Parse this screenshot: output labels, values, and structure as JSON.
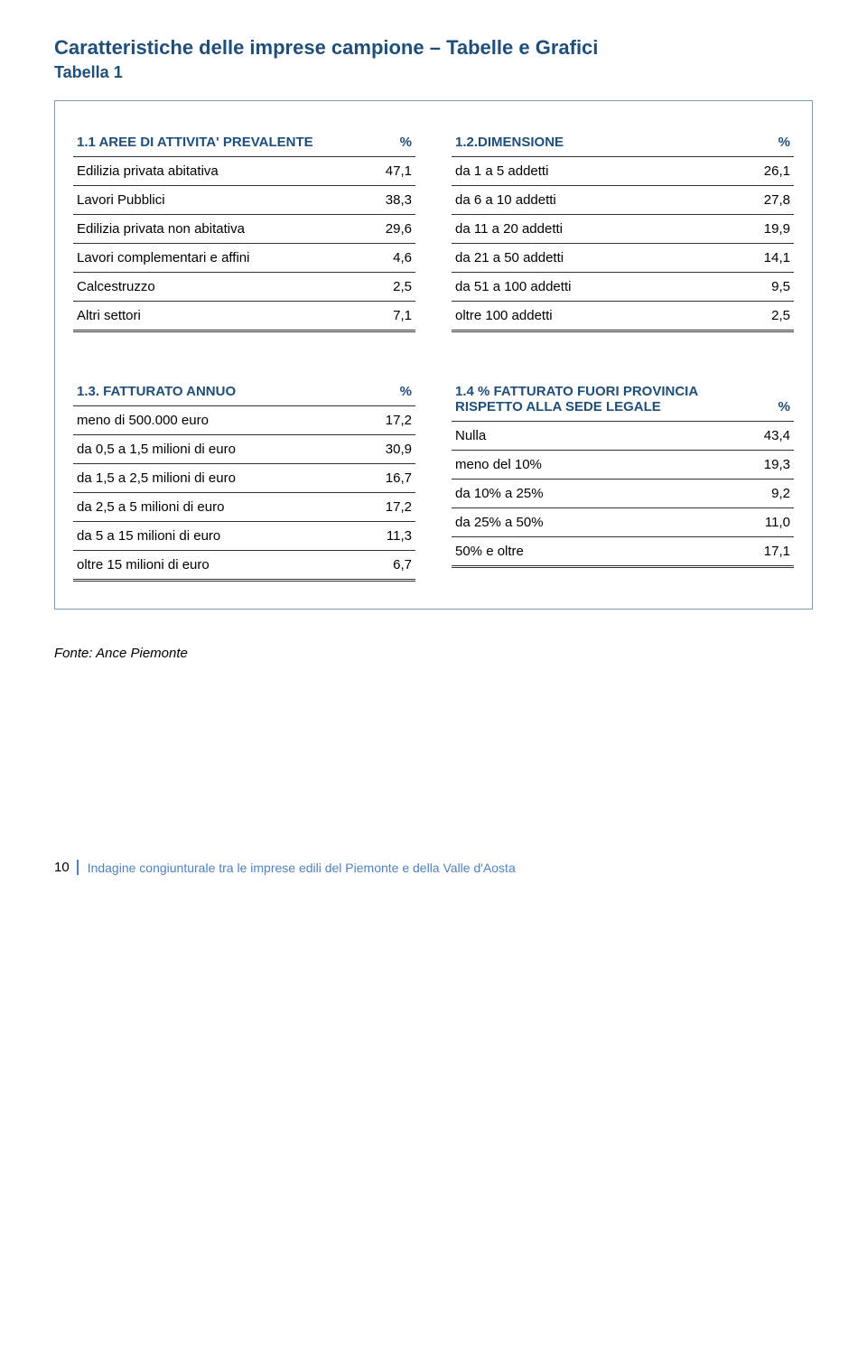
{
  "page": {
    "title": "Caratteristiche delle imprese campione – Tabelle e Grafici",
    "subtitle": "Tabella 1",
    "source": "Fonte: Ance Piemonte",
    "footer_number": "10",
    "footer_text": "Indagine congiunturale tra le imprese edili del Piemonte e della Valle d'Aosta"
  },
  "colors": {
    "heading": "#1f4e79",
    "box_border": "#7f9db9",
    "rule": "#333333",
    "footer_accent": "#4f81bd",
    "background": "#ffffff"
  },
  "table11": {
    "title": "1.1 AREE DI ATTIVITA' PREVALENTE",
    "col2": "%",
    "rows": [
      {
        "label": "Edilizia privata abitativa",
        "val": "47,1"
      },
      {
        "label": "Lavori Pubblici",
        "val": "38,3"
      },
      {
        "label": "Edilizia privata non abitativa",
        "val": "29,6"
      },
      {
        "label": "Lavori complementari e affini",
        "val": "4,6"
      },
      {
        "label": "Calcestruzzo",
        "val": "2,5"
      },
      {
        "label": "Altri settori",
        "val": "7,1"
      }
    ]
  },
  "table12": {
    "title": "1.2.DIMENSIONE",
    "col2": "%",
    "rows": [
      {
        "label": "da 1 a 5 addetti",
        "val": "26,1"
      },
      {
        "label": "da 6 a 10 addetti",
        "val": "27,8"
      },
      {
        "label": "da 11 a 20 addetti",
        "val": "19,9"
      },
      {
        "label": "da 21 a 50 addetti",
        "val": "14,1"
      },
      {
        "label": "da 51 a 100 addetti",
        "val": "9,5"
      },
      {
        "label": "oltre 100 addetti",
        "val": "2,5"
      }
    ]
  },
  "table13": {
    "title": "1.3. FATTURATO ANNUO",
    "col2": "%",
    "rows": [
      {
        "label": "meno di 500.000 euro",
        "val": "17,2"
      },
      {
        "label": "da 0,5 a 1,5 milioni di euro",
        "val": "30,9"
      },
      {
        "label": "da 1,5 a 2,5 milioni di euro",
        "val": "16,7"
      },
      {
        "label": "da 2,5 a 5 milioni di euro",
        "val": "17,2"
      },
      {
        "label": "da 5 a 15 milioni di euro",
        "val": "11,3"
      },
      {
        "label": "oltre 15 milioni di euro",
        "val": "6,7"
      }
    ]
  },
  "table14": {
    "title": "1.4 % FATTURATO FUORI PROVINCIA RISPETTO ALLA SEDE LEGALE",
    "col2": "%",
    "rows": [
      {
        "label": "Nulla",
        "val": "43,4"
      },
      {
        "label": "meno del 10%",
        "val": "19,3"
      },
      {
        "label": "da 10% a 25%",
        "val": "9,2"
      },
      {
        "label": "da 25% a 50%",
        "val": "11,0"
      },
      {
        "label": "50% e oltre",
        "val": "17,1"
      }
    ]
  }
}
